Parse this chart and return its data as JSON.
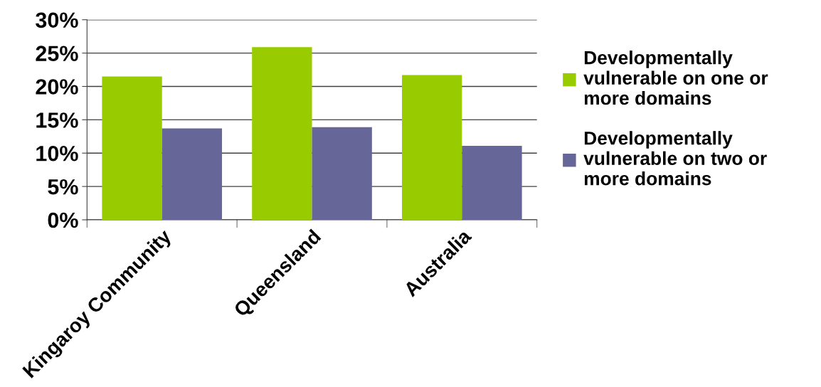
{
  "chart_data": {
    "type": "bar",
    "categories": [
      "Kingaroy Community",
      "Queensland",
      "Australia"
    ],
    "series": [
      {
        "name": "Developmentally\nvulnerable on one or\nmore domains",
        "color": "#99cc00",
        "values": [
          21.5,
          25.9,
          21.7
        ]
      },
      {
        "name": "Developmentally\nvulnerable on two or\nmore domains",
        "color": "#666699",
        "values": [
          13.7,
          13.9,
          11.1
        ]
      }
    ],
    "ylim": [
      0,
      30
    ],
    "yticks": [
      {
        "value": 0,
        "label": "0%"
      },
      {
        "value": 5,
        "label": "5%"
      },
      {
        "value": 10,
        "label": "10%"
      },
      {
        "value": 15,
        "label": "15%"
      },
      {
        "value": 20,
        "label": "20%"
      },
      {
        "value": 25,
        "label": "25%"
      },
      {
        "value": 30,
        "label": "30%"
      }
    ],
    "grid": "y",
    "legend": "right"
  }
}
